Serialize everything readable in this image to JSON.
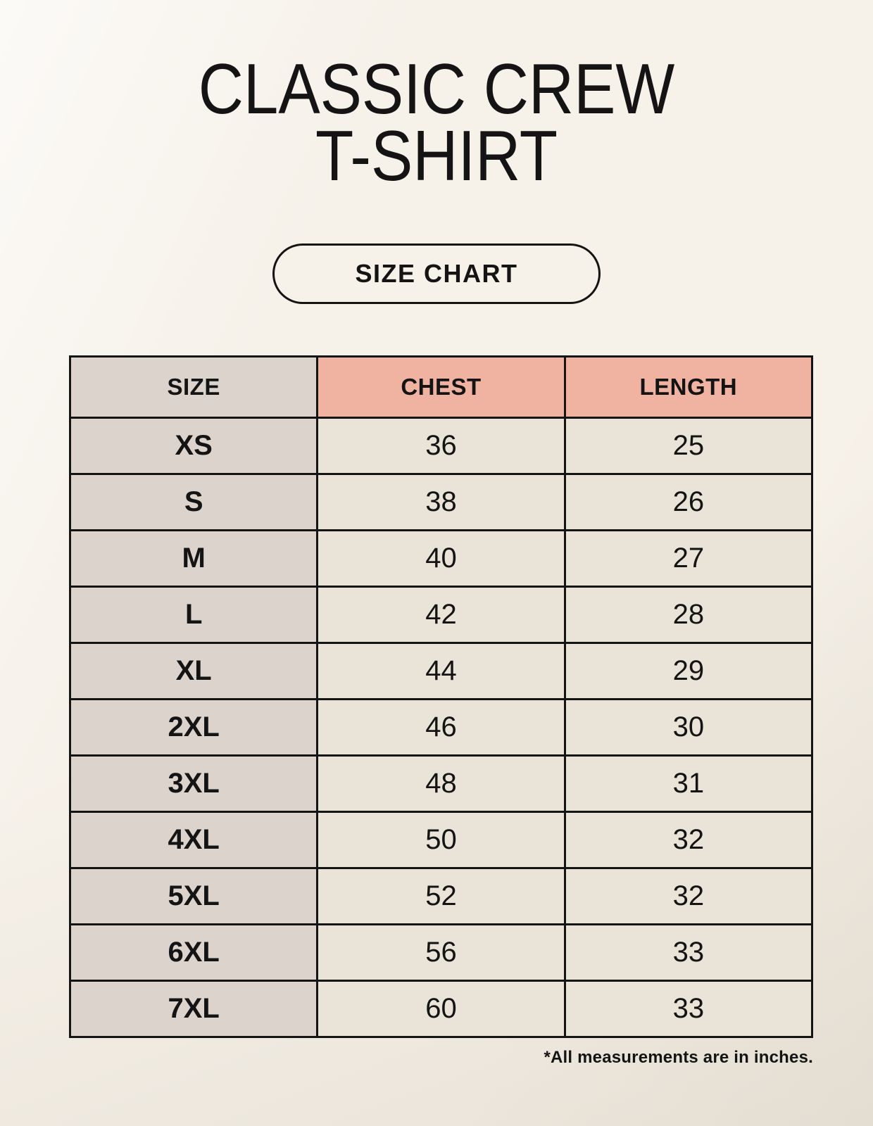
{
  "header": {
    "title_line1": "CLASSIC CREW",
    "title_line2": "T-SHIRT",
    "badge_label": "SIZE CHART"
  },
  "footer": {
    "note": "*All measurements are in inches."
  },
  "colors": {
    "page_background": "#f6f1e9",
    "header_accent": "#f0b3a2",
    "size_column_background": "#dbd3cc",
    "value_cell_background": "#eae3d7",
    "border": "#141414",
    "text": "#141414"
  },
  "chart_data": {
    "type": "table",
    "title": "CLASSIC CREW T-SHIRT — SIZE CHART",
    "units": "inches",
    "columns": [
      "SIZE",
      "CHEST",
      "LENGTH"
    ],
    "rows": [
      {
        "size": "XS",
        "chest": 36,
        "length": 25
      },
      {
        "size": "S",
        "chest": 38,
        "length": 26
      },
      {
        "size": "M",
        "chest": 40,
        "length": 27
      },
      {
        "size": "L",
        "chest": 42,
        "length": 28
      },
      {
        "size": "XL",
        "chest": 44,
        "length": 29
      },
      {
        "size": "2XL",
        "chest": 46,
        "length": 30
      },
      {
        "size": "3XL",
        "chest": 48,
        "length": 31
      },
      {
        "size": "4XL",
        "chest": 50,
        "length": 32
      },
      {
        "size": "5XL",
        "chest": 52,
        "length": 32
      },
      {
        "size": "6XL",
        "chest": 56,
        "length": 33
      },
      {
        "size": "7XL",
        "chest": 60,
        "length": 33
      }
    ]
  }
}
